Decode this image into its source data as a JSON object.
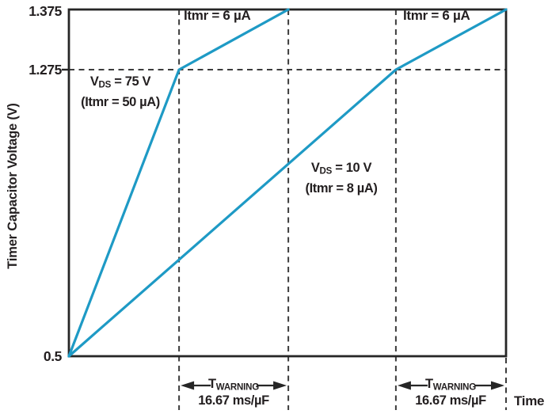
{
  "colors": {
    "curve": "#1e9ac5",
    "axis": "#262626",
    "dashed": "#3c3c3c",
    "text": "#231f20",
    "background": "#ffffff"
  },
  "chart_data": {
    "type": "line",
    "title": "",
    "xlabel": "Time",
    "ylabel": "Timer Capacitor Voltage (V)",
    "x_axis_unit": "normalized time (no numeric scale shown)",
    "ylim": [
      0.5,
      1.375
    ],
    "grid": false,
    "y_ticks": [
      {
        "value": 1.375,
        "label": "1.375"
      },
      {
        "value": 1.275,
        "label": "1.275"
      },
      {
        "value": 0.5,
        "label": "0.5"
      }
    ],
    "series": [
      {
        "name": "VDS = 75 V (Itmr = 50 uA), then Itmr = 6 uA above 1.275 V",
        "color": "#1e9ac5",
        "points": [
          {
            "x": 0.0,
            "v": 0.5
          },
          {
            "x": 0.252,
            "v": 1.275
          },
          {
            "x": 0.502,
            "v": 1.375
          }
        ]
      },
      {
        "name": "VDS = 10 V (Itmr = 8 uA), then Itmr = 6 uA above 1.275 V",
        "color": "#1e9ac5",
        "points": [
          {
            "x": 0.0,
            "v": 0.5
          },
          {
            "x": 0.748,
            "v": 1.275
          },
          {
            "x": 1.0,
            "v": 1.375
          }
        ]
      }
    ],
    "reference_lines": {
      "horizontal_dashed_v": 1.275,
      "vertical_dashed_x": [
        0.252,
        0.502,
        0.748,
        1.0
      ]
    },
    "warning_intervals": [
      {
        "from_x": 0.252,
        "to_x": 0.502,
        "label": "TWARNING",
        "duration": "16.67 ms/µF"
      },
      {
        "from_x": 0.748,
        "to_x": 1.0,
        "label": "TWARNING",
        "duration": "16.67 ms/µF"
      }
    ]
  },
  "labels": {
    "ylabel": "Timer Capacitor Voltage (V)",
    "ytick_top": "1.375",
    "ytick_mid": "1.275",
    "ytick_bottom": "0.5",
    "itmr6_left": "Itmr = 6 µA",
    "itmr6_right": "Itmr = 6 µA",
    "vds75_line1_main": "V",
    "vds75_line1_sub": "DS",
    "vds75_line1_rest": " = 75 V",
    "vds75_line2": "(Itmr = 50 µA)",
    "vds10_line1_main": "V",
    "vds10_line1_sub": "DS",
    "vds10_line1_rest": " = 10 V",
    "vds10_line2": "(Itmr = 8 µA)",
    "twarning_main": "T",
    "twarning_sub": "WARNING",
    "twarning_rate": "16.67 ms/µF",
    "time_label": "Time"
  }
}
